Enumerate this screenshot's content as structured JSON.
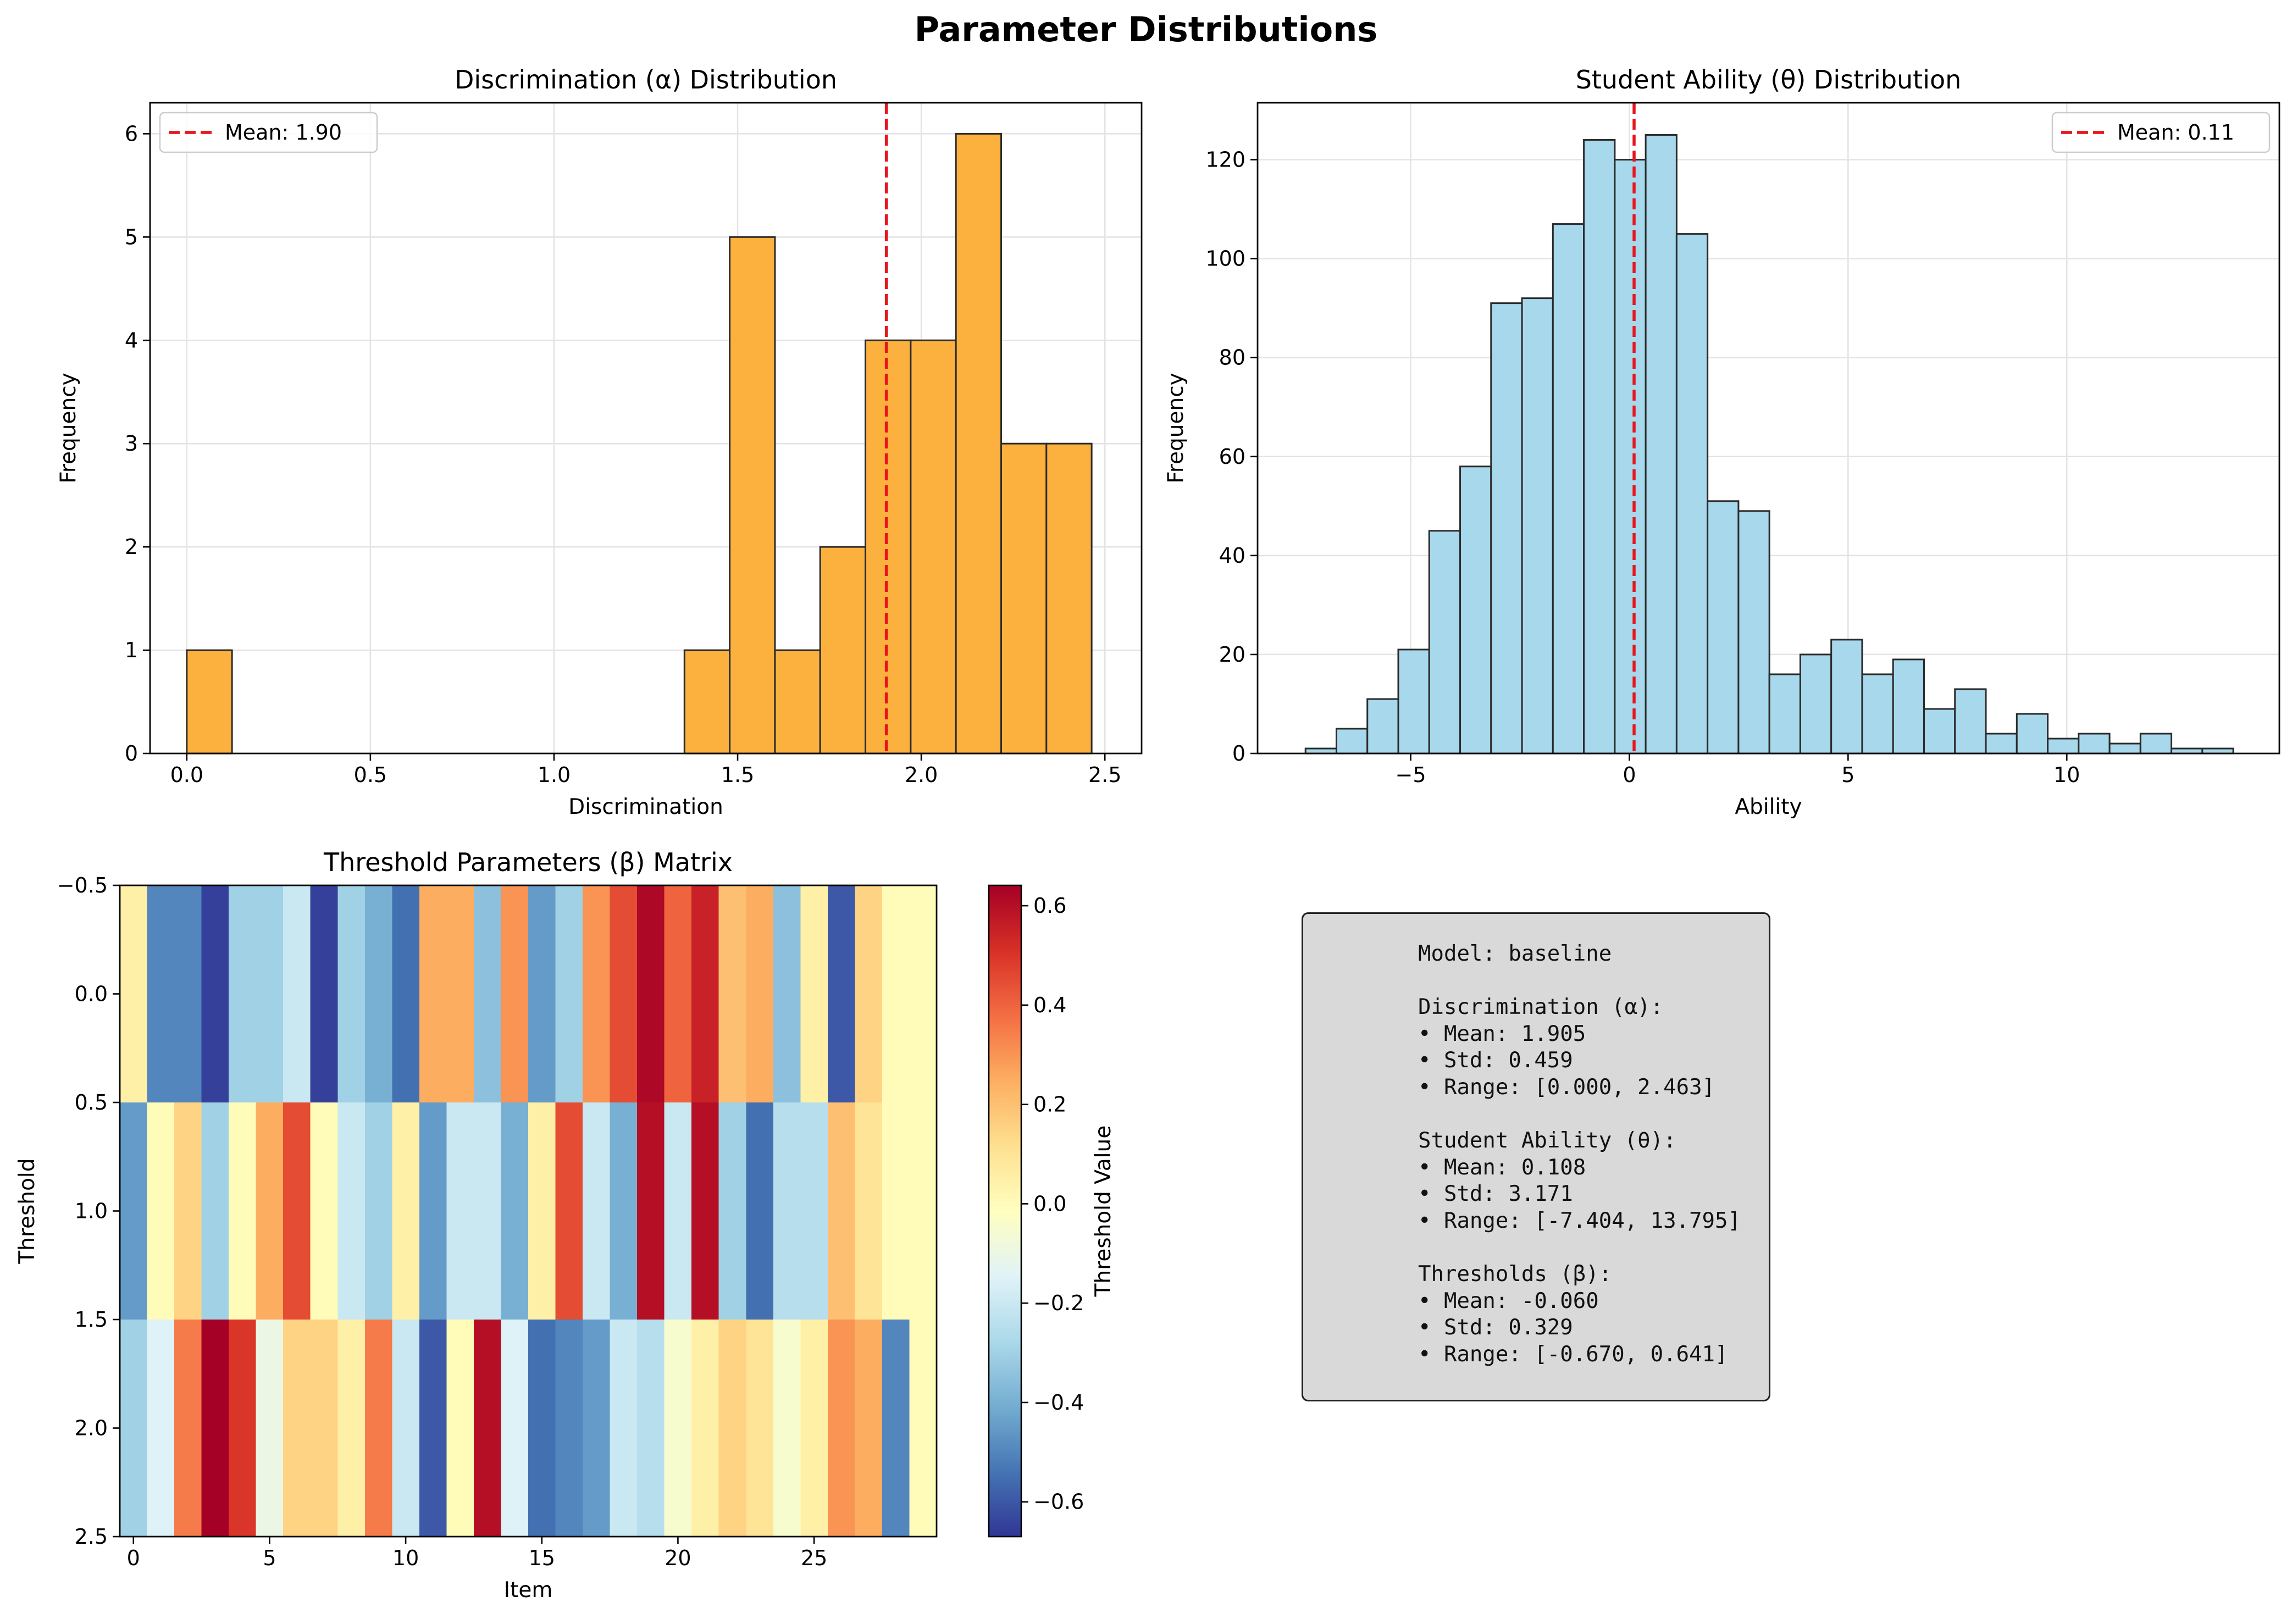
{
  "figure": {
    "title": "Parameter Distributions"
  },
  "chart_data": [
    {
      "type": "bar",
      "title": "Discrimination (α) Distribution",
      "xlabel": "Discrimination",
      "ylabel": "Frequency",
      "xlim": [
        -0.1,
        2.6
      ],
      "ylim": [
        0,
        6.3
      ],
      "xticks": [
        0.0,
        0.5,
        1.0,
        1.5,
        2.0,
        2.5
      ],
      "xtick_labels": [
        "0.0",
        "0.5",
        "1.0",
        "1.5",
        "2.0",
        "2.5"
      ],
      "yticks": [
        0,
        1,
        2,
        3,
        4,
        5,
        6
      ],
      "ytick_labels": [
        "0",
        "1",
        "2",
        "3",
        "4",
        "5",
        "6"
      ],
      "bin_start": 0.0,
      "bin_width": 0.1232,
      "values": [
        1,
        0,
        0,
        0,
        0,
        0,
        0,
        0,
        0,
        0,
        0,
        1,
        5,
        1,
        2,
        4,
        4,
        6,
        3,
        3
      ],
      "bar_color": "#fcb13f",
      "mean_line": 1.905,
      "mean_color": "#e8141c",
      "legend": [
        "Mean: 1.90"
      ],
      "legend_position": "upper-left",
      "grid": true
    },
    {
      "type": "bar",
      "title": "Student Ability (θ) Distribution",
      "xlabel": "Ability",
      "ylabel": "Frequency",
      "xlim": [
        -8.5,
        14.86
      ],
      "ylim": [
        0,
        131.5
      ],
      "xticks": [
        -5,
        0,
        5,
        10
      ],
      "xtick_labels": [
        "−5",
        "0",
        "5",
        "10"
      ],
      "yticks": [
        0,
        20,
        40,
        60,
        80,
        100,
        120
      ],
      "ytick_labels": [
        "0",
        "20",
        "40",
        "60",
        "80",
        "100",
        "120"
      ],
      "bin_start": -7.404,
      "bin_width": 0.707,
      "values": [
        1,
        5,
        11,
        21,
        45,
        58,
        91,
        92,
        107,
        124,
        120,
        125,
        105,
        51,
        49,
        16,
        20,
        23,
        16,
        19,
        9,
        13,
        4,
        8,
        3,
        4,
        2,
        4,
        1,
        1
      ],
      "bar_color": "#a8d8ec",
      "mean_line": 0.108,
      "mean_color": "#e8141c",
      "legend": [
        "Mean: 0.11"
      ],
      "legend_position": "upper-right",
      "grid": true
    },
    {
      "type": "heatmap",
      "title": "Threshold Parameters (β) Matrix",
      "xlabel": "Item",
      "ylabel": "Threshold",
      "xlim": [
        -0.5,
        29.5
      ],
      "ylim": [
        2.5,
        -0.5
      ],
      "xticks": [
        0,
        5,
        10,
        15,
        20,
        25
      ],
      "xtick_labels": [
        "0",
        "5",
        "10",
        "15",
        "20",
        "25"
      ],
      "yticks": [
        -0.5,
        0.0,
        0.5,
        1.0,
        1.5,
        2.0,
        2.5
      ],
      "ytick_labels": [
        "−0.5",
        "0.0",
        "0.5",
        "1.0",
        "1.5",
        "2.0",
        "2.5"
      ],
      "colormap": "RdYlBu_r",
      "vmin": -0.67,
      "vmax": 0.641,
      "colorbar_label": "Threshold Value",
      "colorbar_ticks": [
        -0.6,
        -0.4,
        -0.2,
        0.0,
        0.2,
        0.4,
        0.6
      ],
      "colorbar_tick_labels": [
        "−0.6",
        "−0.4",
        "−0.2",
        "0.0",
        "0.2",
        "0.4",
        "0.6"
      ],
      "values": [
        [
          0.05,
          -0.5,
          -0.5,
          -0.65,
          -0.3,
          -0.3,
          -0.2,
          -0.65,
          -0.3,
          -0.4,
          -0.55,
          0.25,
          0.25,
          -0.35,
          0.3,
          -0.45,
          -0.3,
          0.3,
          0.45,
          0.62,
          0.4,
          0.55,
          0.2,
          0.25,
          -0.35,
          0.05,
          -0.6,
          0.15,
          0.0,
          0.0
        ],
        [
          -0.45,
          0.0,
          0.15,
          -0.3,
          0.0,
          0.25,
          0.45,
          0.0,
          -0.2,
          -0.3,
          0.05,
          -0.45,
          -0.2,
          -0.2,
          -0.4,
          0.05,
          0.45,
          -0.2,
          -0.4,
          0.6,
          -0.2,
          0.6,
          -0.3,
          -0.55,
          -0.25,
          -0.25,
          0.2,
          0.1,
          0.0,
          0.0
        ],
        [
          -0.3,
          -0.15,
          0.35,
          0.64,
          0.5,
          -0.1,
          0.15,
          0.15,
          0.05,
          0.35,
          -0.2,
          -0.6,
          0.0,
          0.6,
          -0.15,
          -0.55,
          -0.5,
          -0.45,
          -0.2,
          -0.25,
          -0.05,
          0.05,
          0.15,
          0.1,
          -0.05,
          0.05,
          0.3,
          0.25,
          -0.5,
          0.0
        ]
      ]
    }
  ],
  "stats": {
    "lines": [
      "Model: baseline",
      "",
      "Discrimination (α):",
      "• Mean: 1.905",
      "• Std: 0.459",
      "• Range: [0.000, 2.463]",
      "",
      "Student Ability (θ):",
      "• Mean: 0.108",
      "• Std: 3.171",
      "• Range: [-7.404, 13.795]",
      "",
      "Thresholds (β):",
      "• Mean: -0.060",
      "• Std: 0.329",
      "• Range: [-0.670, 0.641]"
    ]
  }
}
